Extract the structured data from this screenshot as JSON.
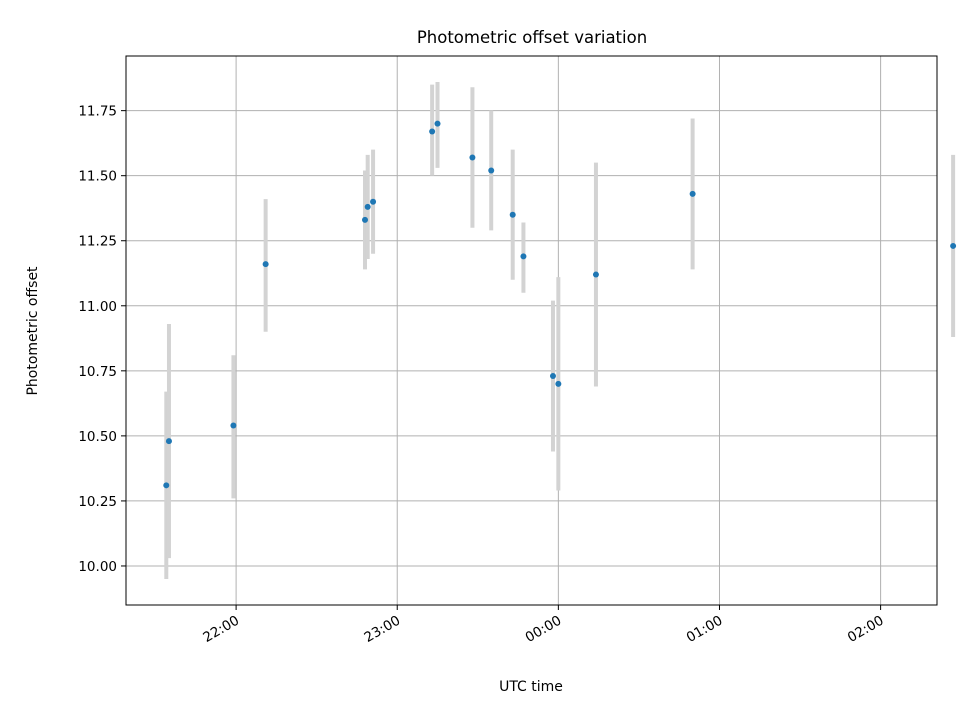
{
  "chart_data": {
    "type": "scatter",
    "title": "Photometric offset variation",
    "xlabel": "UTC time",
    "ylabel": "Photometric offset",
    "x_unit": "UTC",
    "xlim": [
      "21:19",
      "02:21"
    ],
    "ylim": [
      9.85,
      11.96
    ],
    "grid": true,
    "x_ticks": [
      "22:00",
      "23:00",
      "00:00",
      "01:00",
      "02:00"
    ],
    "y_ticks": [
      "10.00",
      "10.25",
      "10.50",
      "10.75",
      "11.00",
      "11.25",
      "11.50",
      "11.75"
    ],
    "colors": {
      "marker": "#1f77b4",
      "errorbar": "#d3d3d3",
      "grid": "#b0b0b0"
    },
    "points": [
      {
        "time": "21:34",
        "y": 10.31,
        "err_low": 9.95,
        "err_high": 10.67
      },
      {
        "time": "21:35",
        "y": 10.48,
        "err_low": 10.03,
        "err_high": 10.93
      },
      {
        "time": "21:59",
        "y": 10.54,
        "err_low": 10.26,
        "err_high": 10.81
      },
      {
        "time": "22:11",
        "y": 11.16,
        "err_low": 10.9,
        "err_high": 11.41
      },
      {
        "time": "22:48",
        "y": 11.33,
        "err_low": 11.14,
        "err_high": 11.52
      },
      {
        "time": "22:49",
        "y": 11.38,
        "err_low": 11.18,
        "err_high": 11.58
      },
      {
        "time": "22:51",
        "y": 11.4,
        "err_low": 11.2,
        "err_high": 11.6
      },
      {
        "time": "23:13",
        "y": 11.67,
        "err_low": 11.5,
        "err_high": 11.85
      },
      {
        "time": "23:15",
        "y": 11.7,
        "err_low": 11.53,
        "err_high": 11.86
      },
      {
        "time": "23:28",
        "y": 11.57,
        "err_low": 11.3,
        "err_high": 11.84
      },
      {
        "time": "23:35",
        "y": 11.52,
        "err_low": 11.29,
        "err_high": 11.75
      },
      {
        "time": "23:43",
        "y": 11.35,
        "err_low": 11.1,
        "err_high": 11.6
      },
      {
        "time": "23:47",
        "y": 11.19,
        "err_low": 11.05,
        "err_high": 11.32
      },
      {
        "time": "23:58",
        "y": 10.73,
        "err_low": 10.44,
        "err_high": 11.02
      },
      {
        "time": "00:00",
        "y": 10.7,
        "err_low": 10.29,
        "err_high": 11.11
      },
      {
        "time": "00:14",
        "y": 11.12,
        "err_low": 10.69,
        "err_high": 11.55
      },
      {
        "time": "00:50",
        "y": 11.43,
        "err_low": 11.14,
        "err_high": 11.72
      },
      {
        "time": "02:27",
        "y": 11.23,
        "err_low": 10.88,
        "err_high": 11.58
      }
    ]
  }
}
